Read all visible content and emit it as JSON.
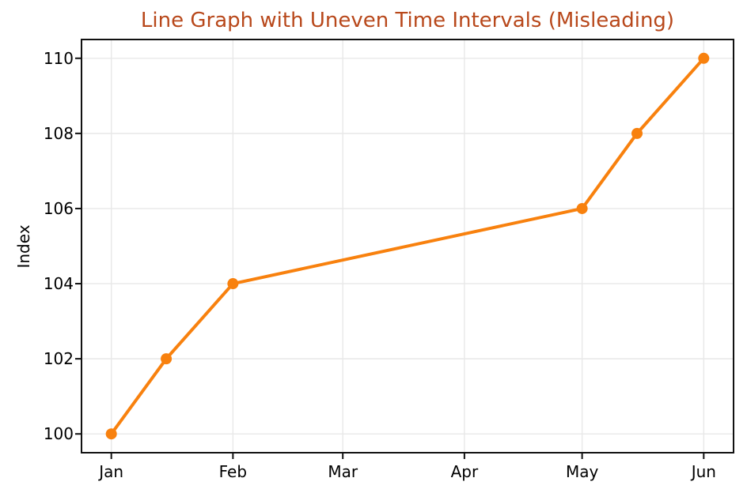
{
  "figure": {
    "background": "#ffffff"
  },
  "chart_data": {
    "type": "line",
    "title": "Line Graph with Uneven Time Intervals (Misleading)",
    "title_color": "#b8481b",
    "xlabel": "",
    "ylabel": "Index",
    "x_axis_kind": "date (days since Jan 1)",
    "points": [
      {
        "date": "Jan 1",
        "x_day": 0,
        "y": 100
      },
      {
        "date": "Jan 15",
        "x_day": 14,
        "y": 102
      },
      {
        "date": "Feb 1",
        "x_day": 31,
        "y": 104
      },
      {
        "date": "May 1",
        "x_day": 120,
        "y": 106
      },
      {
        "date": "May 15",
        "x_day": 134,
        "y": 108
      },
      {
        "date": "Jun 1",
        "x_day": 151,
        "y": 110
      }
    ],
    "x_ticks": [
      {
        "label": "Jan",
        "day": 0
      },
      {
        "label": "Feb",
        "day": 31
      },
      {
        "label": "Mar",
        "day": 59
      },
      {
        "label": "Apr",
        "day": 90
      },
      {
        "label": "May",
        "day": 120
      },
      {
        "label": "Jun",
        "day": 151
      }
    ],
    "y_ticks": [
      100,
      102,
      104,
      106,
      108,
      110
    ],
    "xlim_days": [
      -7.6,
      158.6
    ],
    "ylim": [
      99.5,
      110.5
    ],
    "grid": true,
    "legend": "none",
    "line_color": "#f8810e",
    "marker": "circle",
    "marker_radius": 7,
    "line_width": 4,
    "grid_color": "#e8e8e8",
    "axis_color": "#111111",
    "tick_label_color": "#000000"
  }
}
